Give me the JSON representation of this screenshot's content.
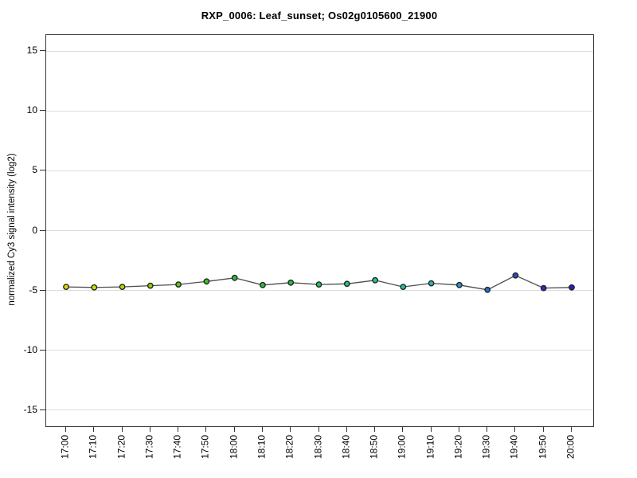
{
  "chart_data": {
    "type": "line",
    "title": "RXP_0006: Leaf_sunset; Os02g0105600_21900",
    "xlabel": "",
    "ylabel": "normalized Cy3 signal intensity (log2)",
    "categories": [
      "17:00",
      "17:10",
      "17:20",
      "17:30",
      "17:40",
      "17:50",
      "18:00",
      "18:10",
      "18:20",
      "18:30",
      "18:40",
      "18:50",
      "19:00",
      "19:10",
      "19:20",
      "19:30",
      "19:40",
      "19:50",
      "20:00"
    ],
    "series": [
      {
        "name": "Os02g0105600_21900",
        "values": [
          -4.7,
          -4.75,
          -4.7,
          -4.6,
          -4.5,
          -4.25,
          -3.95,
          -4.55,
          -4.35,
          -4.5,
          -4.45,
          -4.15,
          -4.7,
          -4.4,
          -4.55,
          -4.95,
          -3.75,
          -4.8,
          -4.75
        ]
      }
    ],
    "point_colors": [
      "#e0e000",
      "#d0de00",
      "#b4d800",
      "#8fce05",
      "#63c414",
      "#40c025",
      "#2bc02b",
      "#24c039",
      "#24c04e",
      "#24c063",
      "#24c278",
      "#24c48e",
      "#24c2a4",
      "#24b4c4",
      "#2496cc",
      "#2472cc",
      "#234ecc",
      "#2230cc",
      "#2222cc"
    ],
    "line_color": "#4d4d4d",
    "marker_outline": "#222222",
    "grid": true,
    "legend": "none",
    "yticks": [
      15,
      10,
      5,
      0,
      -5,
      -10,
      -15
    ],
    "ylim": [
      -16.35,
      16.35
    ]
  }
}
